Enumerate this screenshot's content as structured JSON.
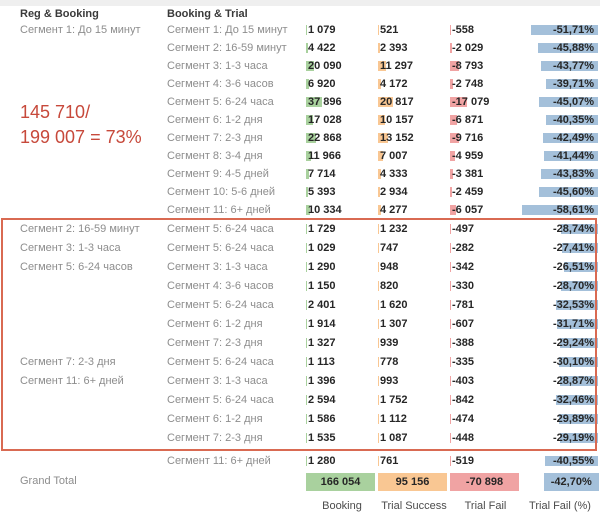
{
  "header": {
    "col1": "Reg & Booking",
    "col2": "Booking & Trial"
  },
  "annotation": {
    "line1": "145 710/",
    "line2": "199 007 = 73%"
  },
  "footer_labels": [
    "Booking",
    "Trial Success",
    "Trial Fail",
    "Trial Fail (%)"
  ],
  "colors": {
    "booking_bar": "#a9d19e",
    "trial_success_bar": "#f9c793",
    "trial_fail_bar": "#f0a3a3",
    "trial_fail_pct_bar": "#a4c0da",
    "highlight_box_border": "#d96a52",
    "annotation_text": "#c7493b"
  },
  "chart_data": {
    "type": "table",
    "title": "",
    "columns": [
      "Reg & Booking",
      "Booking & Trial",
      "Booking",
      "Trial Success",
      "Trial Fail",
      "Trial Fail (%)"
    ],
    "legend_position": "none",
    "grid": false,
    "axis_max": {
      "booking": 166054,
      "trial_success": 95156,
      "trial_fail": 70898,
      "trial_fail_pct": 60
    },
    "groups": [
      {
        "highlighted": false,
        "rows": [
          {
            "reg": "Сегмент 1: До 15 минут",
            "seg": "Сегмент 1: До 15 минут",
            "booking": 1079,
            "trial_success": 521,
            "trial_fail": -558,
            "trial_fail_pct": -51.71
          },
          {
            "reg": "",
            "seg": "Сегмент 2: 16-59 минут",
            "booking": 4422,
            "trial_success": 2393,
            "trial_fail": -2029,
            "trial_fail_pct": -45.88
          },
          {
            "reg": "",
            "seg": "Сегмент 3: 1-3 часа",
            "booking": 20090,
            "trial_success": 11297,
            "trial_fail": -8793,
            "trial_fail_pct": -43.77
          },
          {
            "reg": "",
            "seg": "Сегмент 4: 3-6 часов",
            "booking": 6920,
            "trial_success": 4172,
            "trial_fail": -2748,
            "trial_fail_pct": -39.71
          },
          {
            "reg": "",
            "seg": "Сегмент 5: 6-24 часа",
            "booking": 37896,
            "trial_success": 20817,
            "trial_fail": -17079,
            "trial_fail_pct": -45.07
          },
          {
            "reg": "",
            "seg": "Сегмент 6: 1-2 дня",
            "booking": 17028,
            "trial_success": 10157,
            "trial_fail": -6871,
            "trial_fail_pct": -40.35
          },
          {
            "reg": "",
            "seg": "Сегмент 7: 2-3 дня",
            "booking": 22868,
            "trial_success": 13152,
            "trial_fail": -9716,
            "trial_fail_pct": -42.49
          },
          {
            "reg": "",
            "seg": "Сегмент 8: 3-4 дня",
            "booking": 11966,
            "trial_success": 7007,
            "trial_fail": -4959,
            "trial_fail_pct": -41.44
          },
          {
            "reg": "",
            "seg": "Сегмент 9: 4-5 дней",
            "booking": 7714,
            "trial_success": 4333,
            "trial_fail": -3381,
            "trial_fail_pct": -43.83
          },
          {
            "reg": "",
            "seg": "Сегмент 10: 5-6 дней",
            "booking": 5393,
            "trial_success": 2934,
            "trial_fail": -2459,
            "trial_fail_pct": -45.6
          },
          {
            "reg": "",
            "seg": "Сегмент 11: 6+ дней",
            "booking": 10334,
            "trial_success": 4277,
            "trial_fail": -6057,
            "trial_fail_pct": -58.61
          }
        ]
      },
      {
        "highlighted": true,
        "rows": [
          {
            "reg": "Сегмент 2: 16-59 минут",
            "seg": "Сегмент 5: 6-24 часа",
            "booking": 1729,
            "trial_success": 1232,
            "trial_fail": -497,
            "trial_fail_pct": -28.74
          },
          {
            "reg": "Сегмент 3: 1-3 часа",
            "seg": "Сегмент 5: 6-24 часа",
            "booking": 1029,
            "trial_success": 747,
            "trial_fail": -282,
            "trial_fail_pct": -27.41
          },
          {
            "reg": "Сегмент 5: 6-24 часов",
            "seg": "Сегмент 3: 1-3 часа",
            "booking": 1290,
            "trial_success": 948,
            "trial_fail": -342,
            "trial_fail_pct": -26.51
          },
          {
            "reg": "",
            "seg": "Сегмент 4: 3-6 часов",
            "booking": 1150,
            "trial_success": 820,
            "trial_fail": -330,
            "trial_fail_pct": -28.7
          },
          {
            "reg": "",
            "seg": "Сегмент 5: 6-24 часа",
            "booking": 2401,
            "trial_success": 1620,
            "trial_fail": -781,
            "trial_fail_pct": -32.53
          },
          {
            "reg": "",
            "seg": "Сегмент 6: 1-2 дня",
            "booking": 1914,
            "trial_success": 1307,
            "trial_fail": -607,
            "trial_fail_pct": -31.71
          },
          {
            "reg": "",
            "seg": "Сегмент 7: 2-3 дня",
            "booking": 1327,
            "trial_success": 939,
            "trial_fail": -388,
            "trial_fail_pct": -29.24
          },
          {
            "reg": "Сегмент 7: 2-3 дня",
            "seg": "Сегмент 5: 6-24 часа",
            "booking": 1113,
            "trial_success": 778,
            "trial_fail": -335,
            "trial_fail_pct": -30.1
          },
          {
            "reg": "Сегмент 11: 6+ дней",
            "seg": "Сегмент 3: 1-3 часа",
            "booking": 1396,
            "trial_success": 993,
            "trial_fail": -403,
            "trial_fail_pct": -28.87
          },
          {
            "reg": "",
            "seg": "Сегмент 5: 6-24 часа",
            "booking": 2594,
            "trial_success": 1752,
            "trial_fail": -842,
            "trial_fail_pct": -32.46
          },
          {
            "reg": "",
            "seg": "Сегмент 6: 1-2 дня",
            "booking": 1586,
            "trial_success": 1112,
            "trial_fail": -474,
            "trial_fail_pct": -29.89
          },
          {
            "reg": "",
            "seg": "Сегмент 7: 2-3 дня",
            "booking": 1535,
            "trial_success": 1087,
            "trial_fail": -448,
            "trial_fail_pct": -29.19
          }
        ]
      },
      {
        "highlighted": false,
        "rows": [
          {
            "reg": "",
            "seg": "Сегмент 11: 6+ дней",
            "booking": 1280,
            "trial_success": 761,
            "trial_fail": -519,
            "trial_fail_pct": -40.55
          }
        ]
      }
    ],
    "grand_total": {
      "label": "Grand Total",
      "booking": 166054,
      "trial_success": 95156,
      "trial_fail": -70898,
      "trial_fail_pct": -42.7
    }
  }
}
